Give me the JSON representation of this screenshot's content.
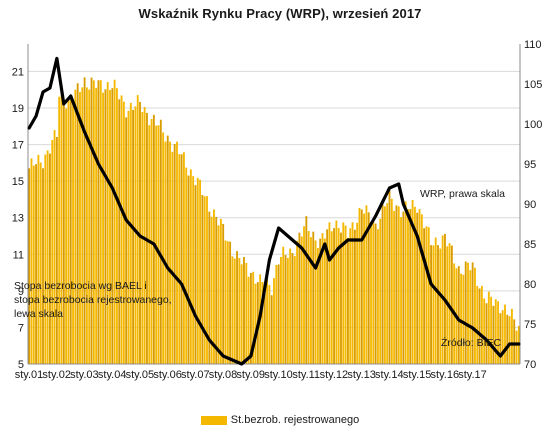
{
  "chart_data": {
    "type": "bar+line",
    "title": "Wskaźnik Rynku Pracy (WRP), wrzesień 2017",
    "x_tick_labels": [
      "sty.01",
      "sty.02",
      "sty.03",
      "sty.04",
      "sty.05",
      "sty.06",
      "sty.07",
      "sty.08",
      "sty.09",
      "sty.10",
      "sty.11",
      "sty.12",
      "sty.13",
      "sty.14",
      "sty.15",
      "sty.16",
      "sty.17"
    ],
    "y_left": {
      "ticks": [
        5,
        7,
        9,
        11,
        13,
        15,
        17,
        19,
        21
      ],
      "range": [
        5,
        22.5
      ]
    },
    "y_right": {
      "ticks": [
        70,
        75,
        80,
        85,
        90,
        95,
        100,
        105,
        110
      ],
      "range": [
        70,
        110
      ]
    },
    "grid": true,
    "legend": {
      "position": "bottom",
      "entries": [
        "St.bezrob. rejestrowanego"
      ]
    },
    "annotations": {
      "wrp_label": "WRP, prawa skala",
      "left_label": [
        "Stopa bezrobocia wg BAEL i",
        "stopa bezrobocia rejestrowanego,",
        "lewa skala"
      ],
      "source": "Źródło: BIEC"
    },
    "colors": {
      "bars": "#f5b800",
      "bars_dark": "#d99c00",
      "line": "#000000",
      "grid": "#d9d9d9"
    },
    "series": [
      {
        "name": "St.bezrob. rejestrowanego",
        "axis": "left",
        "type": "bar",
        "x_start": "2001-01",
        "frequency": "monthly",
        "values_knots": [
          [
            0,
            15.7
          ],
          [
            6,
            16.2
          ],
          [
            12,
            17.5
          ],
          [
            13,
            19.7
          ],
          [
            18,
            19.3
          ],
          [
            24,
            20.5
          ],
          [
            30,
            20.2
          ],
          [
            36,
            20.3
          ],
          [
            42,
            19.0
          ],
          [
            48,
            19.2
          ],
          [
            54,
            18.3
          ],
          [
            60,
            17.4
          ],
          [
            66,
            16.4
          ],
          [
            72,
            15.1
          ],
          [
            78,
            13.7
          ],
          [
            84,
            12.3
          ],
          [
            90,
            10.8
          ],
          [
            96,
            10.1
          ],
          [
            100,
            9.4
          ],
          [
            105,
            9.3
          ],
          [
            108,
            10.7
          ],
          [
            114,
            11.2
          ],
          [
            120,
            12.6
          ],
          [
            126,
            11.6
          ],
          [
            132,
            12.8
          ],
          [
            138,
            12.1
          ],
          [
            144,
            13.5
          ],
          [
            150,
            12.6
          ],
          [
            156,
            14.1
          ],
          [
            162,
            13.3
          ],
          [
            168,
            13.8
          ],
          [
            174,
            11.6
          ],
          [
            180,
            11.9
          ],
          [
            186,
            10.2
          ],
          [
            192,
            10.3
          ],
          [
            198,
            8.5
          ],
          [
            204,
            8.3
          ],
          [
            212,
            7.0
          ]
        ]
      },
      {
        "name": "WRP",
        "axis": "right",
        "type": "line",
        "x_start": "2001-01",
        "frequency": "monthly",
        "values_knots": [
          [
            0,
            99.5
          ],
          [
            3,
            101
          ],
          [
            6,
            104
          ],
          [
            9,
            104.5
          ],
          [
            12,
            108.2
          ],
          [
            15,
            102.5
          ],
          [
            18,
            103.5
          ],
          [
            24,
            99
          ],
          [
            30,
            95
          ],
          [
            36,
            92
          ],
          [
            42,
            88
          ],
          [
            48,
            86
          ],
          [
            54,
            85
          ],
          [
            60,
            82
          ],
          [
            66,
            80
          ],
          [
            72,
            76
          ],
          [
            78,
            73
          ],
          [
            84,
            71
          ],
          [
            88,
            70.5
          ],
          [
            92,
            70
          ],
          [
            96,
            71
          ],
          [
            100,
            76
          ],
          [
            104,
            83
          ],
          [
            108,
            87
          ],
          [
            112,
            86
          ],
          [
            118,
            84.5
          ],
          [
            124,
            82
          ],
          [
            128,
            85
          ],
          [
            130,
            83
          ],
          [
            134,
            84.5
          ],
          [
            138,
            85.5
          ],
          [
            144,
            85.5
          ],
          [
            150,
            88.5
          ],
          [
            156,
            92
          ],
          [
            160,
            92.5
          ],
          [
            162,
            90
          ],
          [
            168,
            86
          ],
          [
            174,
            80
          ],
          [
            180,
            78
          ],
          [
            186,
            75.5
          ],
          [
            192,
            74.5
          ],
          [
            198,
            73
          ],
          [
            204,
            71
          ],
          [
            208,
            72.5
          ],
          [
            212,
            72.5
          ]
        ]
      }
    ]
  },
  "legend": {
    "label": "St.bezrob. rejestrowanego"
  }
}
